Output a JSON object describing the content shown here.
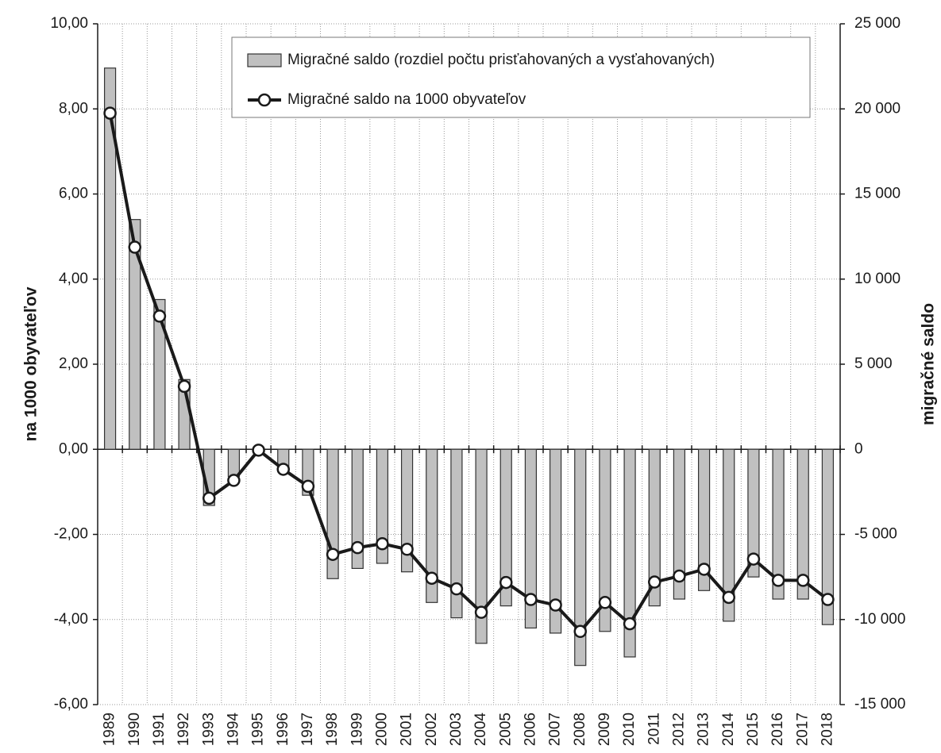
{
  "chart_data": {
    "type": "bar_line",
    "categories": [
      "1989",
      "1990",
      "1991",
      "1992",
      "1993",
      "1994",
      "1995",
      "1996",
      "1997",
      "1998",
      "1999",
      "2000",
      "2001",
      "2002",
      "2003",
      "2004",
      "2005",
      "2006",
      "2007",
      "2008",
      "2009",
      "2010",
      "2011",
      "2012",
      "2013",
      "2014",
      "2015",
      "2016",
      "2017",
      "2018"
    ],
    "series": [
      {
        "name": "Migračné saldo (rozdiel počtu prisťahovaných a vysťahovaných)",
        "kind": "bar",
        "axis": "y2",
        "color": "#c0c0c0",
        "values": [
          22400,
          13500,
          8800,
          4100,
          -3300,
          -1600,
          -100,
          -1300,
          -2700,
          -7600,
          -7000,
          -6700,
          -7200,
          -9000,
          -9900,
          -11400,
          -9200,
          -10500,
          -10800,
          -12700,
          -10700,
          -12200,
          -9200,
          -8800,
          -8300,
          -10100,
          -7500,
          -8800,
          -8800,
          -10300
        ]
      },
      {
        "name": "Migračné saldo na 1000 obyvateľov",
        "kind": "line",
        "axis": "y",
        "color": "#1a1a1a",
        "values": [
          7.9,
          4.75,
          3.13,
          1.48,
          -1.15,
          -0.73,
          -0.02,
          -0.47,
          -0.87,
          -2.47,
          -2.31,
          -2.22,
          -2.35,
          -3.03,
          -3.28,
          -3.83,
          -3.13,
          -3.53,
          -3.66,
          -4.28,
          -3.6,
          -4.1,
          -3.12,
          -2.98,
          -2.82,
          -3.48,
          -2.58,
          -3.08,
          -3.08,
          -3.53
        ]
      }
    ],
    "ylabel": "na 1000 obyvateľov",
    "y2label": "migračné saldo",
    "ylim": [
      -6,
      10
    ],
    "yticks": [
      {
        "value": -6,
        "label": "-6,00"
      },
      {
        "value": -4,
        "label": "-4,00"
      },
      {
        "value": -2,
        "label": "-2,00"
      },
      {
        "value": 0,
        "label": "0,00"
      },
      {
        "value": 2,
        "label": "2,00"
      },
      {
        "value": 4,
        "label": "4,00"
      },
      {
        "value": 6,
        "label": "6,00"
      },
      {
        "value": 8,
        "label": "8,00"
      },
      {
        "value": 10,
        "label": "10,00"
      }
    ],
    "y2lim": [
      -15000,
      25000
    ],
    "y2ticks": [
      {
        "value": -15000,
        "label": "-15 000"
      },
      {
        "value": -10000,
        "label": "-10 000"
      },
      {
        "value": -5000,
        "label": "-5 000"
      },
      0,
      {
        "value": 5000,
        "label": "5 000"
      },
      {
        "value": 10000,
        "label": "10 000"
      },
      {
        "value": 15000,
        "label": "15 000"
      },
      {
        "value": 20000,
        "label": "20 000"
      },
      {
        "value": 25000,
        "label": "25 000"
      }
    ],
    "grid": true
  }
}
